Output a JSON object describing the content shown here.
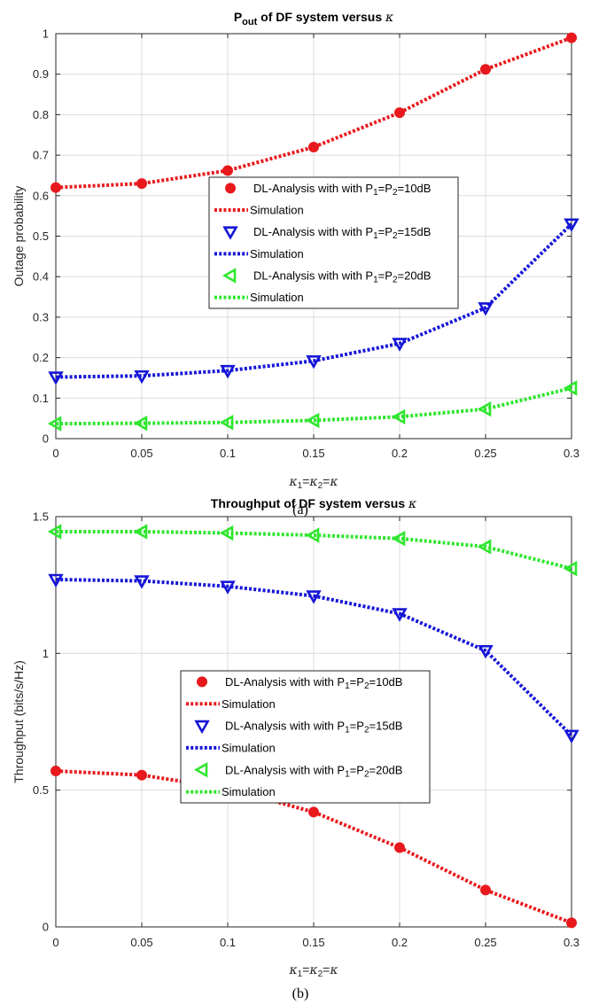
{
  "chart_data": [
    {
      "type": "line",
      "panel_label": "(a)",
      "title": {
        "prefix": "P",
        "subscript": "out",
        "suffix": " of DF system versus ",
        "symbol": "κ"
      },
      "xlabel": {
        "k1": "κ",
        "s1": "1",
        "eq1": "=",
        "k2": "κ",
        "s2": "2",
        "eq2": "=",
        "k3": "κ"
      },
      "ylabel": "Outage probability",
      "xlim": [
        0,
        0.3
      ],
      "ylim": [
        0,
        1
      ],
      "xticks": [
        "0",
        "0.05",
        "0.1",
        "0.15",
        "0.2",
        "0.25",
        "0.3"
      ],
      "yticks": [
        "0",
        "0.1",
        "0.2",
        "0.3",
        "0.4",
        "0.5",
        "0.6",
        "0.7",
        "0.8",
        "0.9",
        "1"
      ],
      "grid": true,
      "legend_position": "center-right",
      "x": [
        0,
        0.05,
        0.1,
        0.15,
        0.2,
        0.25,
        0.3
      ],
      "series": [
        {
          "name": "DL-Analysis with with P1=P2=10dB",
          "sim_name": "Simulation",
          "color": "#e8191d",
          "marker": "circle",
          "values": [
            0.62,
            0.63,
            0.662,
            0.72,
            0.805,
            0.912,
            0.99
          ]
        },
        {
          "name": "DL-Analysis with with P1=P2=15dB",
          "sim_name": "Simulation",
          "color": "#1515d8",
          "marker": "triangle-down",
          "values": [
            0.152,
            0.155,
            0.168,
            0.192,
            0.235,
            0.323,
            0.53
          ]
        },
        {
          "name": "DL-Analysis with with P1=P2=20dB",
          "sim_name": "Simulation",
          "color": "#2ee62e",
          "marker": "triangle-left",
          "values": [
            0.037,
            0.038,
            0.04,
            0.045,
            0.054,
            0.073,
            0.125
          ]
        }
      ],
      "legend": [
        {
          "kind": "marker",
          "series": 0,
          "pre": "DL-Analysis with with P",
          "s1": "1",
          "mid": "=P",
          "s2": "2",
          "post": "=10dB"
        },
        {
          "kind": "line",
          "series": 0,
          "text": "Simulation"
        },
        {
          "kind": "marker",
          "series": 1,
          "pre": "DL-Analysis with with P",
          "s1": "1",
          "mid": "=P",
          "s2": "2",
          "post": "=15dB"
        },
        {
          "kind": "line",
          "series": 1,
          "text": "Simulation"
        },
        {
          "kind": "marker",
          "series": 2,
          "pre": "DL-Analysis with with P",
          "s1": "1",
          "mid": "=P",
          "s2": "2",
          "post": "=20dB"
        },
        {
          "kind": "line",
          "series": 2,
          "text": "Simulation"
        }
      ]
    },
    {
      "type": "line",
      "panel_label": "(b)",
      "title": {
        "prefix": "Throughput of DF system versus ",
        "subscript": "",
        "suffix": "",
        "symbol": "κ"
      },
      "xlabel": {
        "k1": "κ",
        "s1": "1",
        "eq1": "=",
        "k2": "κ",
        "s2": "2",
        "eq2": "=",
        "k3": "κ"
      },
      "ylabel": "Throughput (bits/s/Hz)",
      "xlim": [
        0,
        0.3
      ],
      "ylim": [
        0,
        1.5
      ],
      "xticks": [
        "0",
        "0.05",
        "0.1",
        "0.15",
        "0.2",
        "0.25",
        "0.3"
      ],
      "yticks": [
        "0",
        "0.5",
        "1",
        "1.5"
      ],
      "grid": true,
      "legend_position": "center-right",
      "x": [
        0,
        0.05,
        0.1,
        0.15,
        0.2,
        0.25,
        0.3
      ],
      "series": [
        {
          "name": "DL-Analysis with with P1=P2=10dB",
          "sim_name": "Simulation",
          "color": "#e8191d",
          "marker": "circle",
          "values": [
            0.57,
            0.555,
            0.506,
            0.42,
            0.29,
            0.135,
            0.015
          ]
        },
        {
          "name": "DL-Analysis with with P1=P2=15dB",
          "sim_name": "Simulation",
          "color": "#1515d8",
          "marker": "triangle-down",
          "values": [
            1.27,
            1.265,
            1.245,
            1.21,
            1.145,
            1.01,
            0.7
          ]
        },
        {
          "name": "DL-Analysis with with P1=P2=20dB",
          "sim_name": "Simulation",
          "color": "#2ee62e",
          "marker": "triangle-left",
          "values": [
            1.445,
            1.445,
            1.44,
            1.432,
            1.42,
            1.39,
            1.31
          ]
        }
      ],
      "legend": [
        {
          "kind": "marker",
          "series": 0,
          "pre": "DL-Analysis with with P",
          "s1": "1",
          "mid": "=P",
          "s2": "2",
          "post": "=10dB"
        },
        {
          "kind": "line",
          "series": 0,
          "text": "Simulation"
        },
        {
          "kind": "marker",
          "series": 1,
          "pre": "DL-Analysis with with P",
          "s1": "1",
          "mid": "=P",
          "s2": "2",
          "post": "=15dB"
        },
        {
          "kind": "line",
          "series": 1,
          "text": "Simulation"
        },
        {
          "kind": "marker",
          "series": 2,
          "pre": "DL-Analysis with with P",
          "s1": "1",
          "mid": "=P",
          "s2": "2",
          "post": "=20dB"
        },
        {
          "kind": "line",
          "series": 2,
          "text": "Simulation"
        }
      ]
    }
  ]
}
